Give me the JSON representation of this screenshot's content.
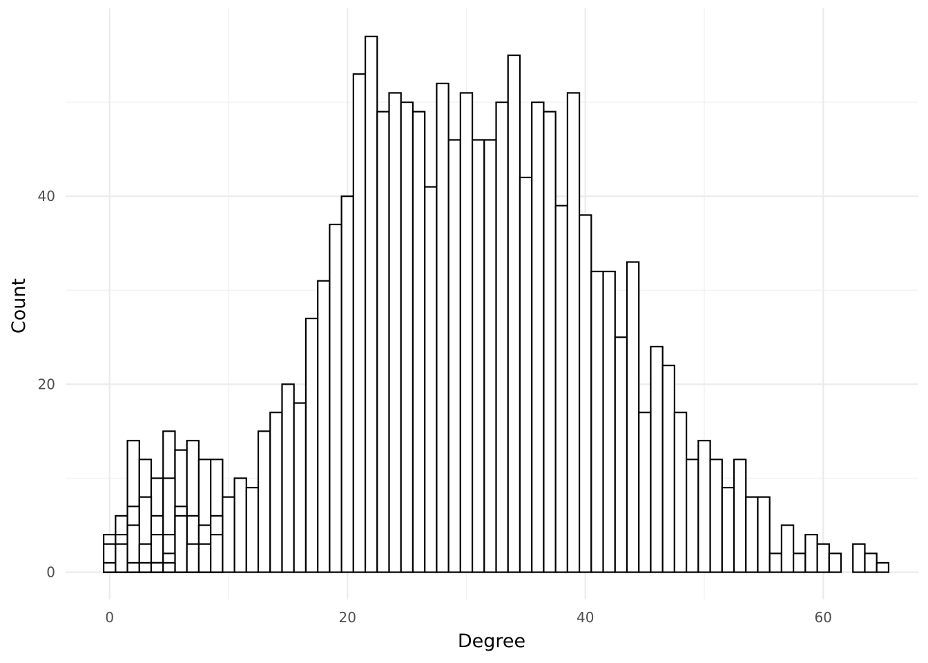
{
  "chart_data": {
    "type": "bar",
    "subtype": "histogram",
    "title": "",
    "xlabel": "Degree",
    "ylabel": "Count",
    "xlim": [
      -3.7,
      68.0
    ],
    "ylim": [
      -2.9,
      60
    ],
    "x_ticks": [
      0,
      20,
      40,
      60
    ],
    "y_ticks": [
      0,
      20,
      40
    ],
    "x_tick_labels": [
      "0",
      "20",
      "40",
      "60"
    ],
    "y_tick_labels": [
      "0",
      "20",
      "40"
    ],
    "grid": true,
    "legend": "none",
    "bin_width": 1,
    "series": [
      {
        "bars": [
          {
            "x": 0,
            "count": 4
          },
          {
            "x": 1,
            "count": 6
          },
          {
            "x": 2,
            "count": 14
          },
          {
            "x": 3,
            "count": 12
          },
          {
            "x": 4,
            "count": 10
          },
          {
            "x": 5,
            "count": 15
          },
          {
            "x": 6,
            "count": 13
          },
          {
            "x": 7,
            "count": 14
          },
          {
            "x": 8,
            "count": 12
          },
          {
            "x": 9,
            "count": 12
          },
          {
            "x": 10,
            "count": 8
          },
          {
            "x": 11,
            "count": 10
          },
          {
            "x": 12,
            "count": 9
          },
          {
            "x": 13,
            "count": 15
          },
          {
            "x": 14,
            "count": 17
          },
          {
            "x": 15,
            "count": 20
          },
          {
            "x": 16,
            "count": 18
          },
          {
            "x": 17,
            "count": 27
          },
          {
            "x": 18,
            "count": 31
          },
          {
            "x": 19,
            "count": 37
          },
          {
            "x": 20,
            "count": 40
          },
          {
            "x": 21,
            "count": 53
          },
          {
            "x": 22,
            "count": 57
          },
          {
            "x": 23,
            "count": 49
          },
          {
            "x": 24,
            "count": 51
          },
          {
            "x": 25,
            "count": 50
          },
          {
            "x": 26,
            "count": 49
          },
          {
            "x": 27,
            "count": 41
          },
          {
            "x": 28,
            "count": 52
          },
          {
            "x": 29,
            "count": 46
          },
          {
            "x": 30,
            "count": 51
          },
          {
            "x": 31,
            "count": 46
          },
          {
            "x": 32,
            "count": 46
          },
          {
            "x": 33,
            "count": 50
          },
          {
            "x": 34,
            "count": 55
          },
          {
            "x": 35,
            "count": 42
          },
          {
            "x": 36,
            "count": 50
          },
          {
            "x": 37,
            "count": 49
          },
          {
            "x": 38,
            "count": 39
          },
          {
            "x": 39,
            "count": 51
          },
          {
            "x": 40,
            "count": 38
          },
          {
            "x": 41,
            "count": 32
          },
          {
            "x": 42,
            "count": 32
          },
          {
            "x": 43,
            "count": 25
          },
          {
            "x": 44,
            "count": 33
          },
          {
            "x": 45,
            "count": 17
          },
          {
            "x": 46,
            "count": 24
          },
          {
            "x": 47,
            "count": 22
          },
          {
            "x": 48,
            "count": 17
          },
          {
            "x": 49,
            "count": 12
          },
          {
            "x": 50,
            "count": 14
          },
          {
            "x": 51,
            "count": 12
          },
          {
            "x": 52,
            "count": 9
          },
          {
            "x": 53,
            "count": 12
          },
          {
            "x": 54,
            "count": 8
          },
          {
            "x": 55,
            "count": 8
          },
          {
            "x": 56,
            "count": 2
          },
          {
            "x": 57,
            "count": 5
          },
          {
            "x": 58,
            "count": 2
          },
          {
            "x": 59,
            "count": 4
          },
          {
            "x": 60,
            "count": 3
          },
          {
            "x": 61,
            "count": 2
          },
          {
            "x": 63,
            "count": 3
          },
          {
            "x": 64,
            "count": 2
          },
          {
            "x": 65,
            "count": 1
          }
        ]
      },
      {
        "bars": [
          {
            "x": 0,
            "count": 3
          },
          {
            "x": 1,
            "count": 4
          },
          {
            "x": 2,
            "count": 7
          },
          {
            "x": 3,
            "count": 8
          },
          {
            "x": 4,
            "count": 6
          },
          {
            "x": 5,
            "count": 10
          },
          {
            "x": 6,
            "count": 7
          },
          {
            "x": 7,
            "count": 6
          },
          {
            "x": 8,
            "count": 5
          },
          {
            "x": 9,
            "count": 6
          }
        ]
      },
      {
        "bars": [
          {
            "x": 0,
            "count": 1
          },
          {
            "x": 1,
            "count": 3
          },
          {
            "x": 2,
            "count": 5
          },
          {
            "x": 3,
            "count": 3
          },
          {
            "x": 4,
            "count": 4
          },
          {
            "x": 5,
            "count": 4
          },
          {
            "x": 6,
            "count": 6
          },
          {
            "x": 7,
            "count": 3
          },
          {
            "x": 8,
            "count": 3
          },
          {
            "x": 9,
            "count": 4
          }
        ]
      },
      {
        "bars": [
          {
            "x": 2,
            "count": 1
          },
          {
            "x": 3,
            "count": 1
          },
          {
            "x": 4,
            "count": 1
          },
          {
            "x": 5,
            "count": 2
          }
        ]
      },
      {
        "bars": [
          {
            "x": 4,
            "count": 1
          },
          {
            "x": 5,
            "count": 1
          }
        ]
      }
    ]
  }
}
